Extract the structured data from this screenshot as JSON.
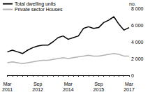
{
  "chart_data": {
    "type": "line",
    "y_label": "no.",
    "categories": [
      "Mar 2011",
      null,
      null,
      null,
      null,
      null,
      "Sep 2012",
      null,
      null,
      null,
      null,
      null,
      "Mar 2014",
      null,
      null,
      null,
      null,
      null,
      "Sep 2015",
      null,
      null,
      null,
      null,
      null,
      "Mar 2017"
    ],
    "series": [
      {
        "name": "Total dwelling units",
        "color": "#000000",
        "values": [
          2800,
          3000,
          2800,
          2600,
          3000,
          3300,
          3500,
          3600,
          3600,
          4000,
          4500,
          4700,
          4300,
          4500,
          4700,
          5600,
          5800,
          5600,
          5700,
          6300,
          6600,
          7000,
          6100,
          5400,
          5700
        ]
      },
      {
        "name": "Private sector Houses",
        "color": "#b3b3b3",
        "values": [
          1500,
          1600,
          1500,
          1400,
          1500,
          1600,
          1700,
          1800,
          1800,
          1900,
          2000,
          2100,
          2000,
          2100,
          2200,
          2300,
          2400,
          2300,
          2300,
          2400,
          2500,
          2600,
          2500,
          2300,
          2300
        ]
      }
    ],
    "ylim": [
      0,
      8000
    ],
    "yticks": [
      0,
      {
        "value": 2000,
        "label": "2 000"
      },
      {
        "value": 4000,
        "label": "4 000"
      },
      {
        "value": 6000,
        "label": "6 000"
      },
      {
        "value": 8000,
        "label": "8 000"
      }
    ],
    "grid": false,
    "legend": "upper left"
  }
}
